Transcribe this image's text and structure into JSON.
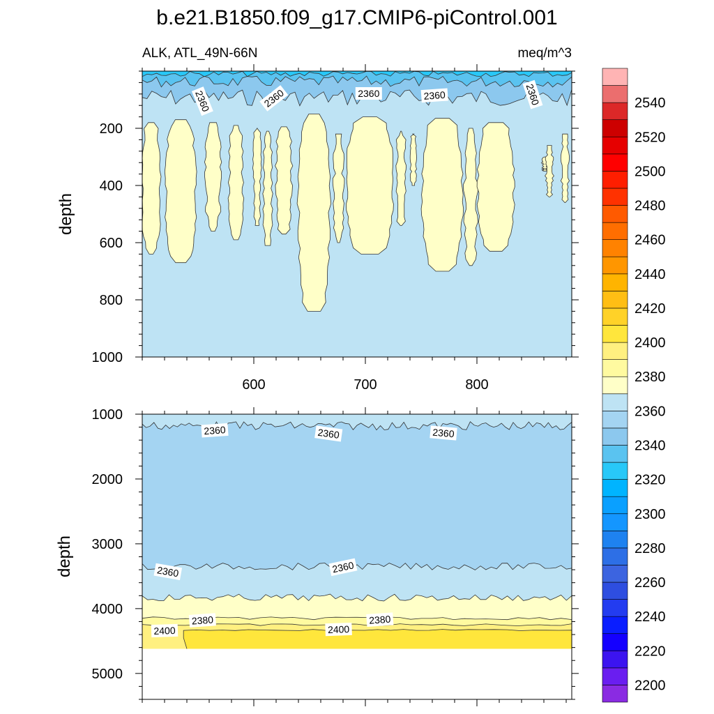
{
  "chart_data": {
    "type": "contour",
    "title": "b.e21.B1850.f09_g17.CMIP6-piControl.001",
    "left_subtitle": "ALK, ATL_49N-66N",
    "right_subtitle": "meq/m^3",
    "ylabel": "depth",
    "xlabel": "",
    "x_range": [
      500,
      885
    ],
    "x_ticks": [
      600,
      700,
      800
    ],
    "upper_panel": {
      "ylim": [
        1000,
        0
      ],
      "y_ticks": [
        200,
        400,
        600,
        800,
        1000
      ]
    },
    "lower_panel": {
      "ylim": [
        5400,
        1000
      ],
      "y_ticks": [
        1000,
        2000,
        3000,
        4000,
        5000
      ],
      "data_bottom_depth": 4620
    },
    "colorbar": {
      "levels": [
        2190,
        2200,
        2210,
        2220,
        2230,
        2240,
        2250,
        2260,
        2270,
        2280,
        2290,
        2300,
        2310,
        2320,
        2330,
        2340,
        2350,
        2360,
        2370,
        2380,
        2390,
        2400,
        2410,
        2420,
        2430,
        2440,
        2450,
        2460,
        2470,
        2480,
        2490,
        2500,
        2510,
        2520,
        2530,
        2540,
        2550,
        2560
      ],
      "colors": [
        "#8a2be2",
        "#6a1ef0",
        "#3c14f0",
        "#1400ff",
        "#0a1eff",
        "#233cf0",
        "#2e4ee0",
        "#3c64e0",
        "#2d6fe6",
        "#1e82f0",
        "#1496ff",
        "#0aa0ff",
        "#00b4ff",
        "#28c8f8",
        "#5ac3f0",
        "#8cc8ee",
        "#a4d4f2",
        "#bee3f4",
        "#ffffc8",
        "#fffaa0",
        "#fff080",
        "#ffe63c",
        "#ffd228",
        "#ffbe14",
        "#ffb400",
        "#ff9600",
        "#ff8200",
        "#ff6e00",
        "#ff5a00",
        "#ff3200",
        "#ff1e00",
        "#ff0000",
        "#e60000",
        "#cd0000",
        "#dc2828",
        "#eb6e6e",
        "#ffb4b4"
      ],
      "tick_labels": [
        "2200",
        "2220",
        "2240",
        "2260",
        "2280",
        "2300",
        "2320",
        "2340",
        "2360",
        "2380",
        "2400",
        "2420",
        "2440",
        "2460",
        "2480",
        "2500",
        "2520",
        "2540"
      ]
    },
    "upper_contour_labels": [
      {
        "text": "2360",
        "x": 554,
        "depth": 105,
        "angle": 68
      },
      {
        "text": "2360",
        "x": 618,
        "depth": 95,
        "angle": -38
      },
      {
        "text": "2360",
        "x": 703,
        "depth": 78,
        "angle": 0
      },
      {
        "text": "2360",
        "x": 762,
        "depth": 85,
        "angle": -4
      },
      {
        "text": "2360",
        "x": 850,
        "depth": 82,
        "angle": 72
      }
    ],
    "lower_contour_labels": [
      {
        "text": "2360",
        "x": 565,
        "depth": 1250,
        "angle": -4
      },
      {
        "text": "2360",
        "x": 667,
        "depth": 1300,
        "angle": 8
      },
      {
        "text": "2360",
        "x": 770,
        "depth": 1290,
        "angle": 5
      },
      {
        "text": "2360",
        "x": 523,
        "depth": 3430,
        "angle": 10
      },
      {
        "text": "2360",
        "x": 680,
        "depth": 3360,
        "angle": -12
      },
      {
        "text": "2380",
        "x": 554,
        "depth": 4180,
        "angle": -4
      },
      {
        "text": "2380",
        "x": 713,
        "depth": 4170,
        "angle": -4
      },
      {
        "text": "2400",
        "x": 520,
        "depth": 4340,
        "angle": -2
      },
      {
        "text": "2400",
        "x": 676,
        "depth": 4320,
        "angle": -2
      }
    ]
  }
}
